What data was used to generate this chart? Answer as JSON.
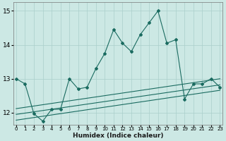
{
  "xlabel": "Humidex (Indice chaleur)",
  "x_ticks": [
    0,
    1,
    2,
    3,
    4,
    5,
    6,
    7,
    8,
    9,
    10,
    11,
    12,
    13,
    14,
    15,
    16,
    17,
    18,
    19,
    20,
    21,
    22,
    23
  ],
  "x_tick_labels": [
    "0",
    "1",
    "2",
    "3",
    "4",
    "5",
    "6",
    "7",
    "8",
    "9",
    "10",
    "11",
    "12",
    "13",
    "14",
    "15",
    "16",
    "17",
    "18",
    "19",
    "20",
    "21",
    "22",
    "23"
  ],
  "xlim": [
    -0.3,
    23.3
  ],
  "ylim": [
    11.65,
    15.25
  ],
  "y_ticks": [
    12,
    13,
    14,
    15
  ],
  "background_color": "#cce8e4",
  "grid_color": "#aacfcb",
  "line_color": "#1a6b60",
  "main_line_x": [
    0,
    1,
    2,
    3,
    4,
    5,
    6,
    7,
    8,
    9,
    10,
    11,
    12,
    13,
    14,
    15,
    16,
    17,
    18,
    19,
    20,
    21,
    22,
    23
  ],
  "main_line_y": [
    13.0,
    12.85,
    11.97,
    11.75,
    12.1,
    12.1,
    13.0,
    12.7,
    12.75,
    13.3,
    13.75,
    14.45,
    14.05,
    13.8,
    14.3,
    14.65,
    15.0,
    14.05,
    14.15,
    12.4,
    12.85,
    12.85,
    13.0,
    12.75
  ],
  "line2_x": [
    0,
    23
  ],
  "line2_y": [
    12.12,
    13.0
  ],
  "line3_x": [
    0,
    23
  ],
  "line3_y": [
    11.95,
    12.82
  ],
  "line4_x": [
    0,
    23
  ],
  "line4_y": [
    11.78,
    12.66
  ]
}
